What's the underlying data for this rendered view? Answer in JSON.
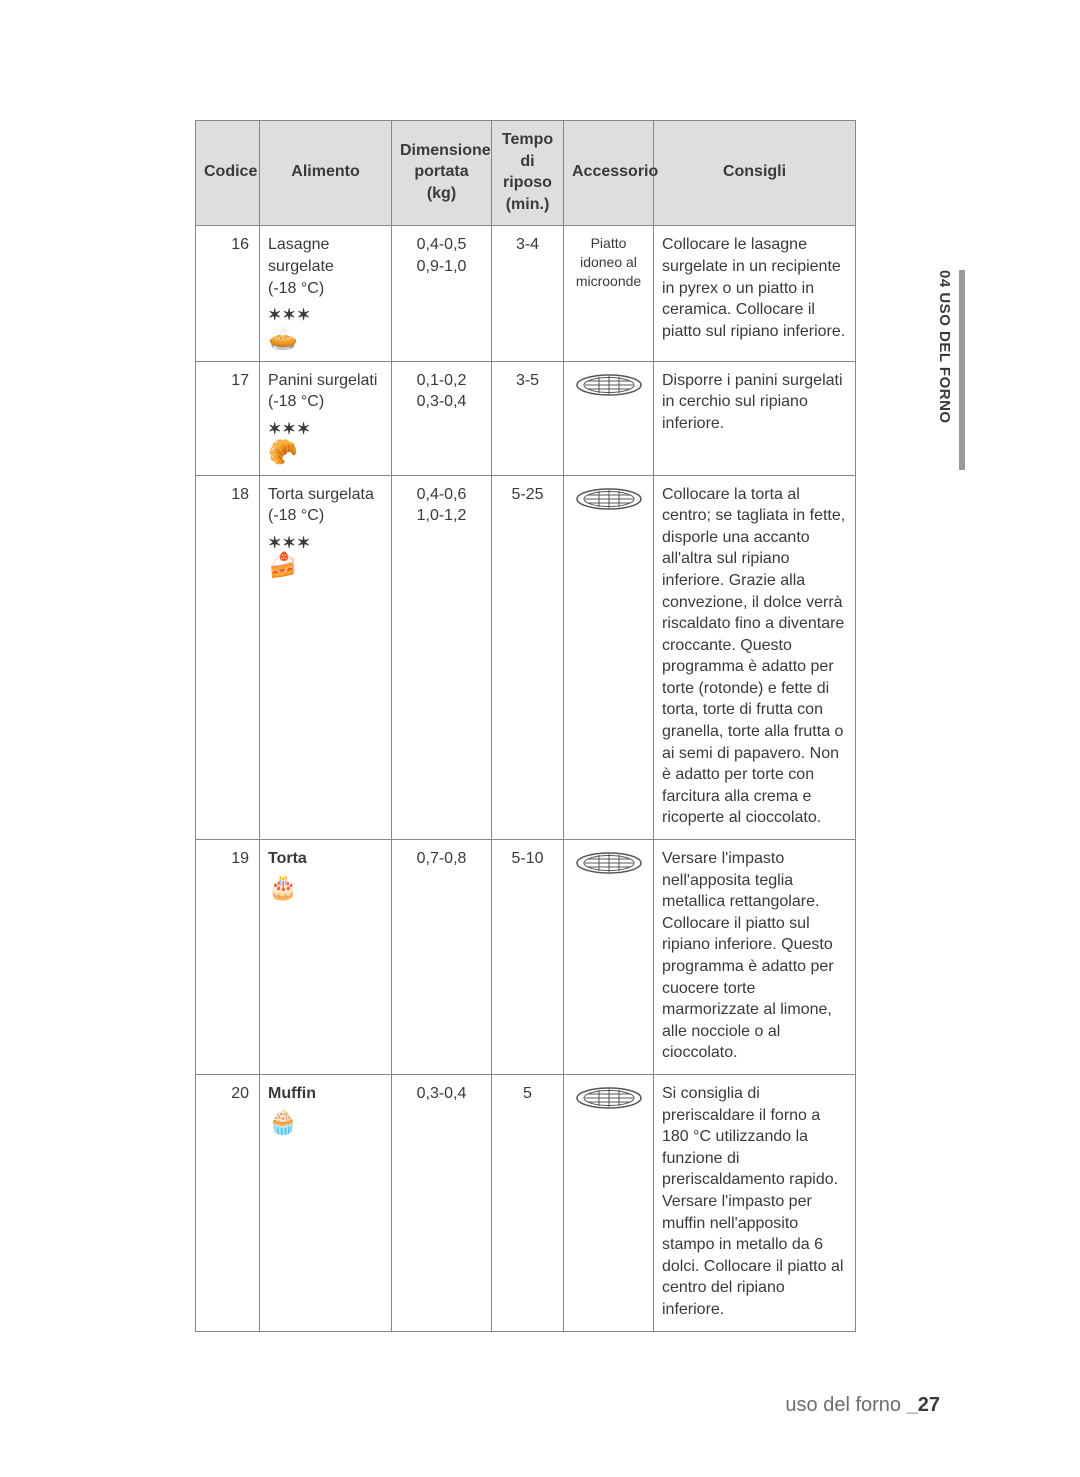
{
  "sideTab": {
    "label": "04 USO DEL FORNO"
  },
  "footer": {
    "section": "uso del forno",
    "sep": "_",
    "page": "27"
  },
  "table": {
    "headers": {
      "code": "Codice",
      "food": "Alimento",
      "dim": "Dimensione portata (kg)",
      "time": "Tempo di riposo (min.)",
      "acc": "Accessorio",
      "tips": "Consigli"
    },
    "rows": [
      {
        "code": "16",
        "food": {
          "name": "Lasagne surgelate",
          "bold": false,
          "temp": "(-18 °C)",
          "stars": "✶✶✶",
          "glyph": "🥧"
        },
        "dim": "0,4-0,5\n0,9-1,0",
        "time": "3-4",
        "acc": {
          "type": "plate-text",
          "text": "Piatto idoneo al microonde"
        },
        "tips": "Collocare le lasagne surgelate in un recipiente in pyrex o un piatto in ceramica. Collocare il piatto sul ripiano inferiore."
      },
      {
        "code": "17",
        "food": {
          "name": "Panini surgelati",
          "bold": false,
          "temp": "(-18 °C)",
          "stars": "✶✶✶",
          "glyph": "🥐"
        },
        "dim": "0,1-0,2\n0,3-0,4",
        "time": "3-5",
        "acc": {
          "type": "rack"
        },
        "tips": "Disporre i panini surgelati in cerchio sul ripiano inferiore."
      },
      {
        "code": "18",
        "food": {
          "name": "Torta surgelata",
          "bold": false,
          "temp": "(-18 °C)",
          "stars": "✶✶✶",
          "glyph": "🍰"
        },
        "dim": "0,4-0,6\n1,0-1,2",
        "time": "5-25",
        "acc": {
          "type": "rack"
        },
        "tips": "Collocare la torta al centro; se tagliata in fette, disporle una accanto all'altra sul ripiano inferiore. Grazie alla convezione, il dolce verrà riscaldato fino a diventare croccante. Questo programma è adatto per torte (rotonde) e fette di torta, torte di frutta con granella, torte alla frutta o ai semi di papavero. Non è adatto per torte con farcitura alla crema e ricoperte al cioccolato."
      },
      {
        "code": "19",
        "food": {
          "name": "Torta",
          "bold": true,
          "temp": "",
          "stars": "",
          "glyph": "🎂"
        },
        "dim": "0,7-0,8",
        "time": "5-10",
        "acc": {
          "type": "rack"
        },
        "tips": "Versare l'impasto nell'apposita teglia metallica rettangolare. Collocare il piatto sul ripiano inferiore. Questo programma è adatto per cuocere torte marmorizzate al limone, alle nocciole o al cioccolato."
      },
      {
        "code": "20",
        "food": {
          "name": "Muffin",
          "bold": true,
          "temp": "",
          "stars": "",
          "glyph": "🧁"
        },
        "dim": "0,3-0,4",
        "time": "5",
        "acc": {
          "type": "rack"
        },
        "tips": "Si consiglia di preriscaldare il forno a 180 °C utilizzando la funzione di preriscaldamento rapido. Versare l'impasto per muffin nell'apposito stampo in metallo da 6 dolci. Collocare il piatto al centro del ripiano inferiore."
      }
    ]
  }
}
